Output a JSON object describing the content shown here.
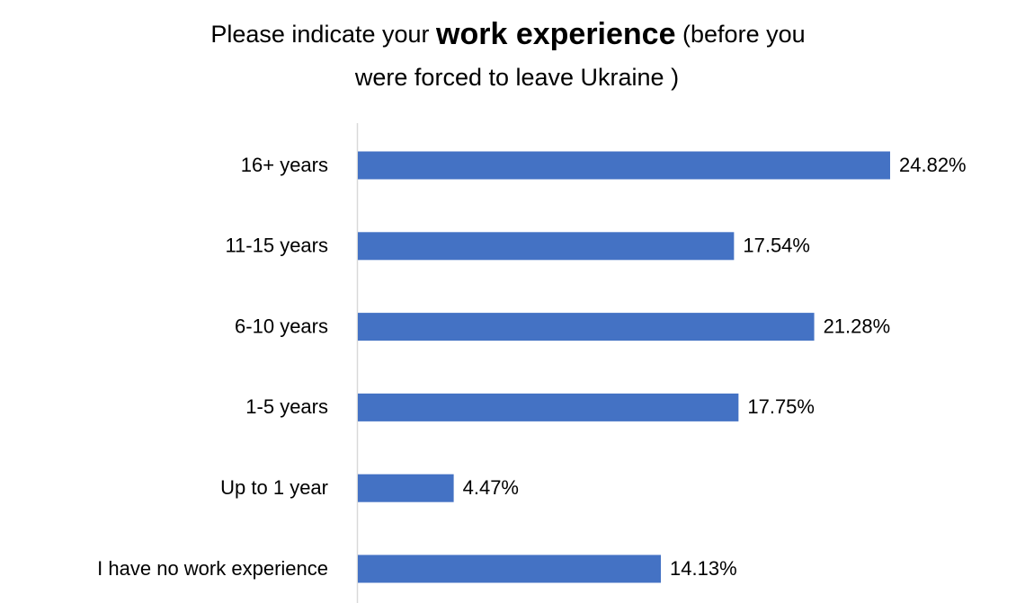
{
  "chart_data": {
    "type": "bar",
    "orientation": "horizontal",
    "title": [
      "Please indicate your",
      "work experience",
      "(before you",
      "were forced to leave Ukraine )"
    ],
    "categories": [
      "16+ years",
      "11-15 years",
      "6-10 years",
      "1-5 years",
      "Up to 1 year",
      "I have no work experience"
    ],
    "values": [
      24.82,
      17.54,
      21.28,
      17.75,
      4.47,
      14.13
    ],
    "value_labels": [
      "24.82%",
      "17.54%",
      "21.28%",
      "17.75%",
      "4.47%",
      "14.13%"
    ],
    "color": "#4472c4"
  }
}
